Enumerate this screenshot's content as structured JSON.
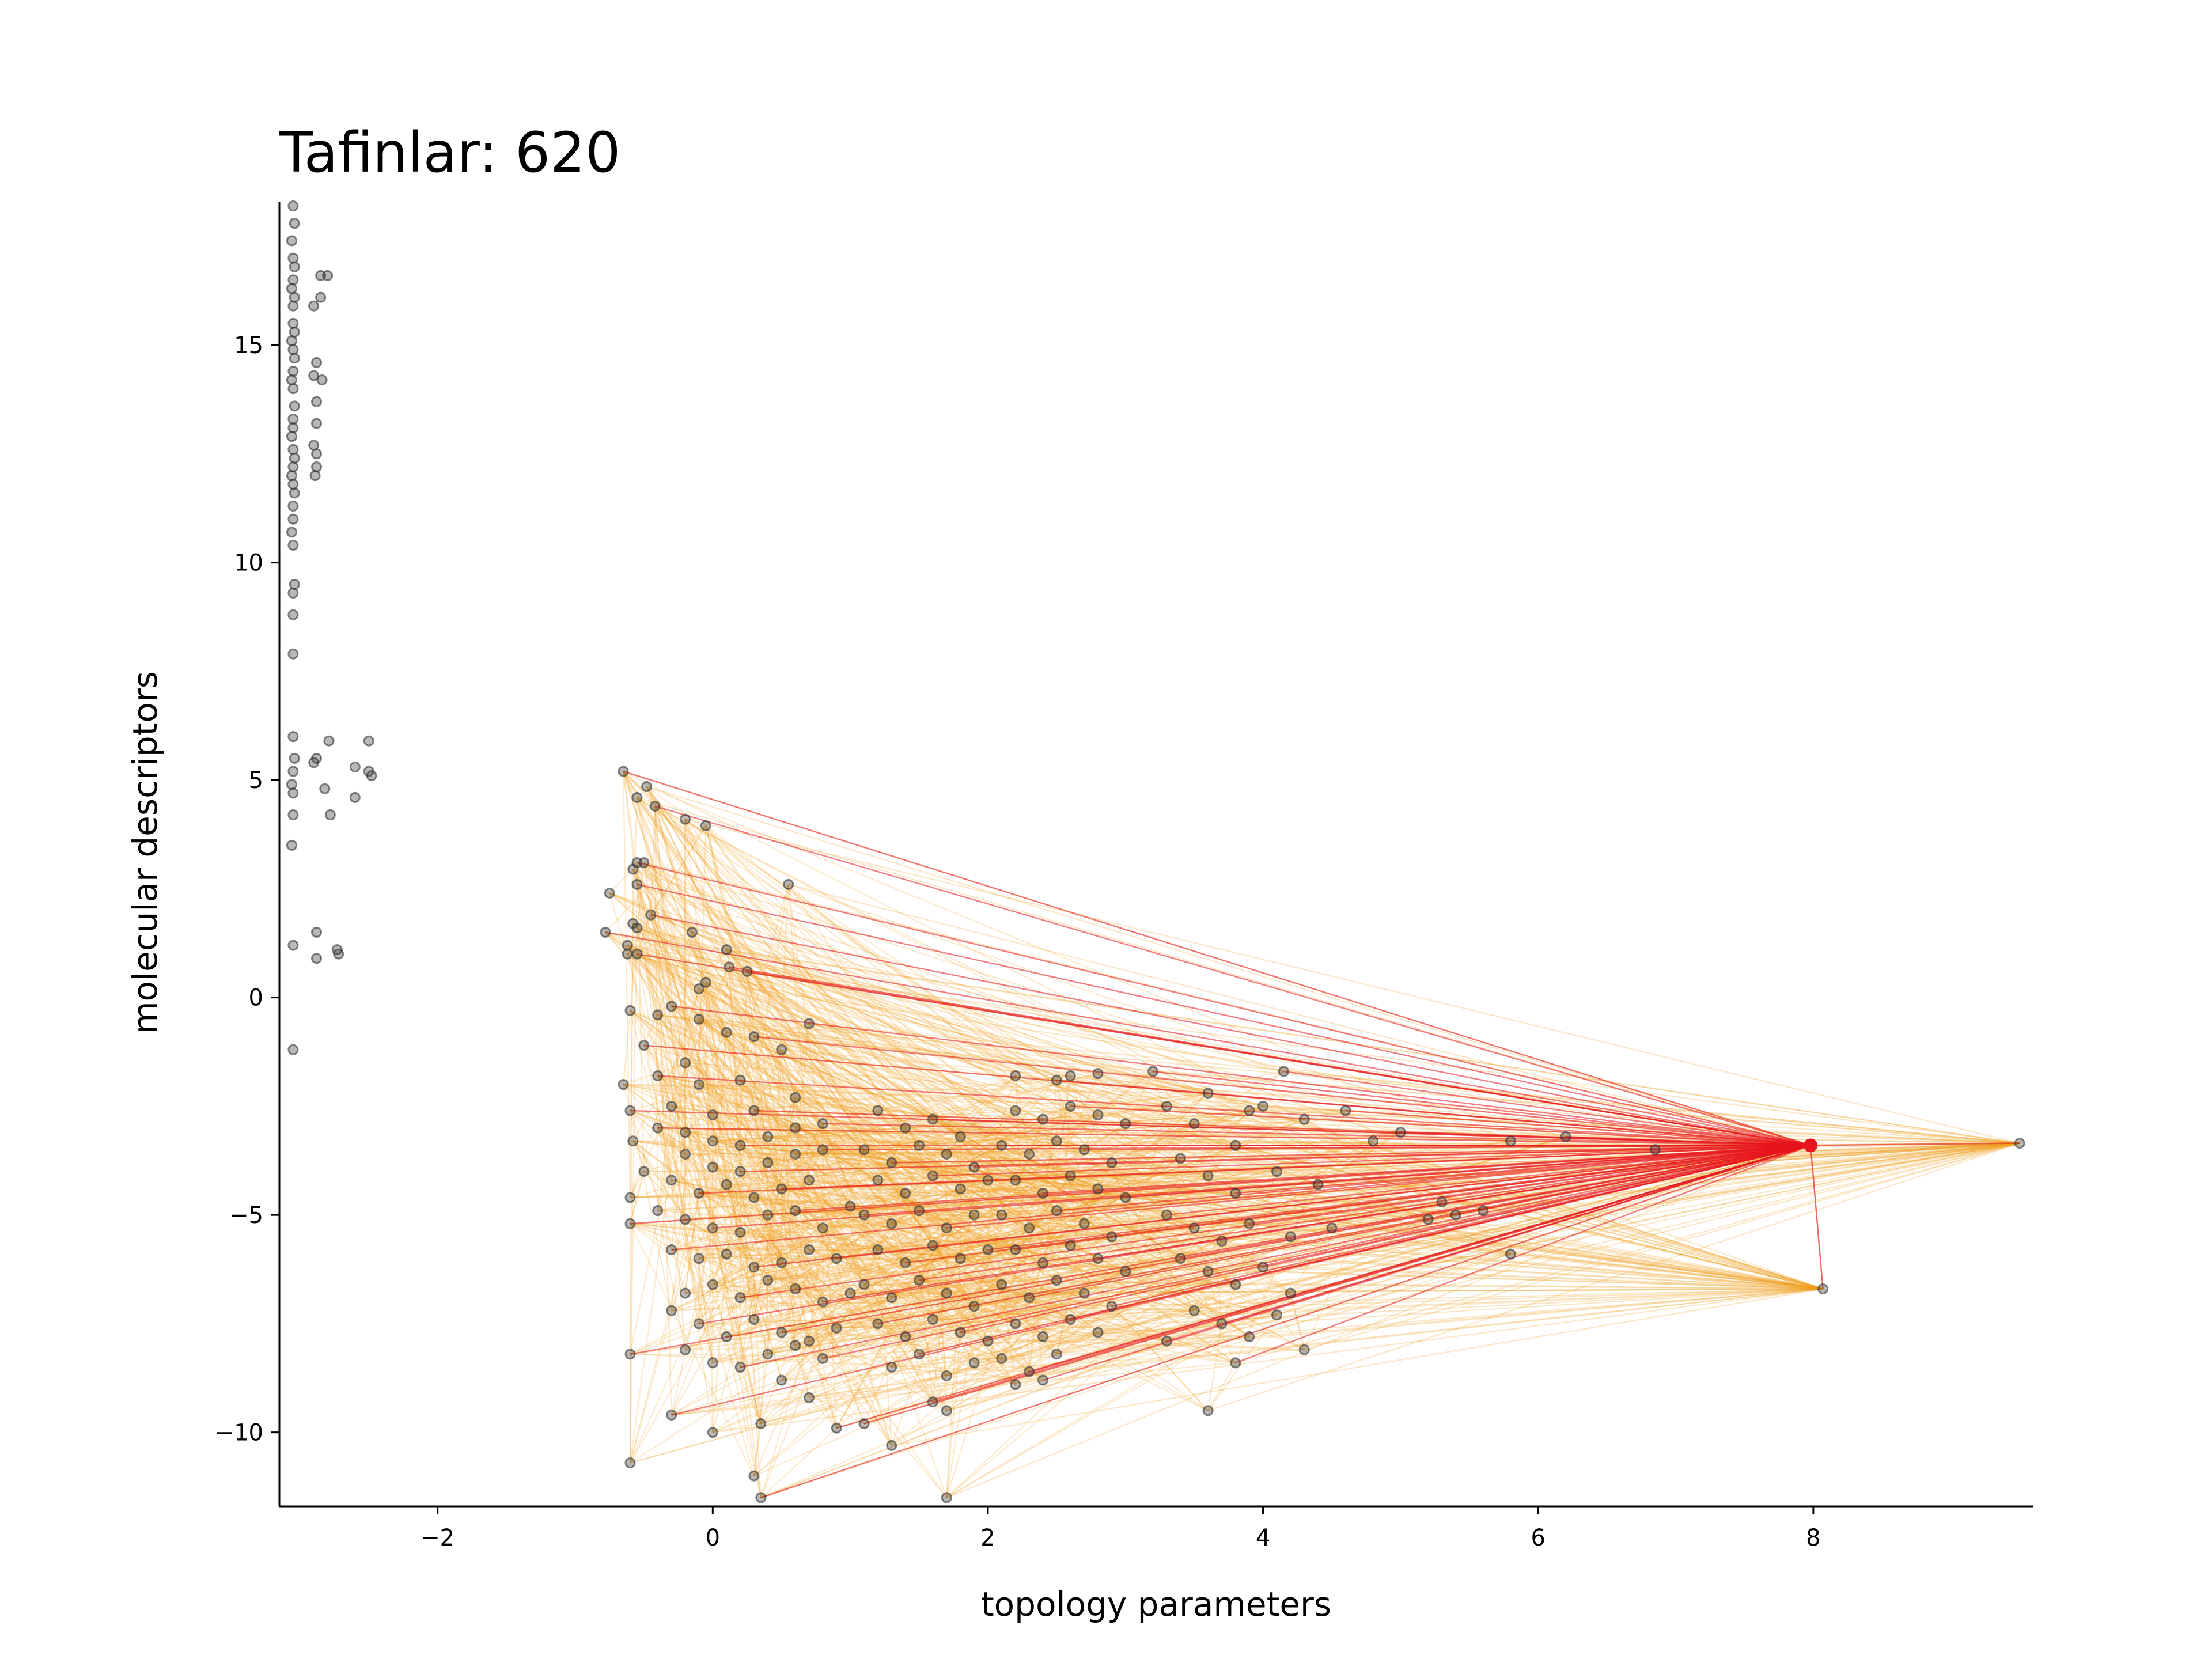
{
  "chart_data": {
    "type": "scatter",
    "title": "Tafinlar: 620",
    "xlabel": "topology parameters",
    "ylabel": "molecular descriptors",
    "xlim": [
      -3.15,
      9.6
    ],
    "ylim": [
      -11.7,
      18.3
    ],
    "xticks": [
      -2,
      0,
      2,
      4,
      6,
      8
    ],
    "yticks": [
      -10,
      -5,
      0,
      5,
      10,
      15
    ],
    "xtick_labels": [
      "−2",
      "0",
      "2",
      "4",
      "6",
      "8"
    ],
    "ytick_labels": [
      "−10",
      "−5",
      "0",
      "5",
      "10",
      "15"
    ],
    "grid": false,
    "legend": "none",
    "colors": {
      "points": "#333333",
      "edges": "#f0a020",
      "highlight_edges": "#e8141e",
      "highlight_point": "#e8141e"
    },
    "highlight_point": {
      "x": 7.98,
      "y": -3.4
    },
    "left_cluster": [
      [
        -3.05,
        18.2
      ],
      [
        -3.04,
        17.8
      ],
      [
        -3.06,
        17.4
      ],
      [
        -3.05,
        17.0
      ],
      [
        -3.04,
        16.8
      ],
      [
        -3.05,
        16.5
      ],
      [
        -3.06,
        16.3
      ],
      [
        -3.04,
        16.1
      ],
      [
        -3.05,
        15.9
      ],
      [
        -3.05,
        15.5
      ],
      [
        -3.04,
        15.3
      ],
      [
        -3.06,
        15.1
      ],
      [
        -3.05,
        14.9
      ],
      [
        -3.04,
        14.7
      ],
      [
        -3.05,
        14.4
      ],
      [
        -3.06,
        14.2
      ],
      [
        -3.05,
        14.0
      ],
      [
        -3.04,
        13.6
      ],
      [
        -3.05,
        13.3
      ],
      [
        -3.05,
        13.1
      ],
      [
        -3.06,
        12.9
      ],
      [
        -3.05,
        12.6
      ],
      [
        -3.04,
        12.4
      ],
      [
        -3.05,
        12.2
      ],
      [
        -3.06,
        12.0
      ],
      [
        -3.05,
        11.8
      ],
      [
        -3.04,
        11.6
      ],
      [
        -3.05,
        11.3
      ],
      [
        -3.05,
        11.0
      ],
      [
        -3.06,
        10.7
      ],
      [
        -3.05,
        10.4
      ],
      [
        -3.04,
        9.5
      ],
      [
        -3.05,
        9.3
      ],
      [
        -3.05,
        8.8
      ],
      [
        -3.05,
        7.9
      ],
      [
        -3.05,
        6.0
      ],
      [
        -3.04,
        5.5
      ],
      [
        -3.05,
        5.2
      ],
      [
        -3.06,
        4.9
      ],
      [
        -3.05,
        4.7
      ],
      [
        -3.05,
        4.2
      ],
      [
        -3.06,
        3.5
      ],
      [
        -3.05,
        1.2
      ],
      [
        -3.05,
        -1.2
      ],
      [
        -2.85,
        16.6
      ],
      [
        -2.8,
        16.6
      ],
      [
        -2.85,
        16.1
      ],
      [
        -2.9,
        15.9
      ],
      [
        -2.88,
        14.6
      ],
      [
        -2.9,
        14.3
      ],
      [
        -2.84,
        14.2
      ],
      [
        -2.88,
        13.7
      ],
      [
        -2.88,
        13.2
      ],
      [
        -2.9,
        12.7
      ],
      [
        -2.88,
        12.5
      ],
      [
        -2.88,
        12.2
      ],
      [
        -2.89,
        12.0
      ],
      [
        -2.9,
        5.4
      ],
      [
        -2.88,
        5.5
      ],
      [
        -2.79,
        5.9
      ],
      [
        -2.82,
        4.8
      ],
      [
        -2.78,
        4.2
      ],
      [
        -2.88,
        1.5
      ],
      [
        -2.88,
        0.9
      ],
      [
        -2.73,
        1.1
      ],
      [
        -2.72,
        1.0
      ],
      [
        -2.6,
        4.6
      ],
      [
        -2.6,
        5.3
      ],
      [
        -2.5,
        5.9
      ],
      [
        -2.5,
        5.2
      ],
      [
        -2.48,
        5.1
      ]
    ],
    "main_points": [
      [
        -0.65,
        5.2
      ],
      [
        -0.55,
        4.6
      ],
      [
        -0.48,
        4.85
      ],
      [
        -0.42,
        4.4
      ],
      [
        -0.2,
        4.1
      ],
      [
        -0.05,
        3.95
      ],
      [
        -0.55,
        3.1
      ],
      [
        -0.5,
        3.1
      ],
      [
        -0.58,
        2.95
      ],
      [
        -0.55,
        2.6
      ],
      [
        0.55,
        2.6
      ],
      [
        -0.75,
        2.4
      ],
      [
        -0.45,
        1.9
      ],
      [
        -0.58,
        1.7
      ],
      [
        -0.55,
        1.6
      ],
      [
        -0.78,
        1.5
      ],
      [
        -0.62,
        1.2
      ],
      [
        -0.62,
        1.0
      ],
      [
        -0.55,
        1.0
      ],
      [
        -0.15,
        1.5
      ],
      [
        0.1,
        1.1
      ],
      [
        0.12,
        0.7
      ],
      [
        -0.1,
        0.2
      ],
      [
        -0.05,
        0.35
      ],
      [
        0.25,
        0.6
      ],
      [
        -0.6,
        -0.3
      ],
      [
        -0.4,
        -0.4
      ],
      [
        -0.3,
        -0.2
      ],
      [
        -0.1,
        -0.5
      ],
      [
        0.1,
        -0.8
      ],
      [
        0.3,
        -0.9
      ],
      [
        0.7,
        -0.6
      ],
      [
        0.5,
        -1.2
      ],
      [
        -0.5,
        -1.1
      ],
      [
        -0.2,
        -1.5
      ],
      [
        -0.65,
        -2.0
      ],
      [
        -0.4,
        -1.8
      ],
      [
        -0.1,
        -2.0
      ],
      [
        0.2,
        -1.9
      ],
      [
        -0.6,
        -2.6
      ],
      [
        -0.3,
        -2.5
      ],
      [
        0.0,
        -2.7
      ],
      [
        0.3,
        -2.6
      ],
      [
        0.6,
        -2.3
      ],
      [
        -0.58,
        -3.3
      ],
      [
        -0.4,
        -3.0
      ],
      [
        -0.2,
        -3.1
      ],
      [
        0.0,
        -3.3
      ],
      [
        0.2,
        -3.4
      ],
      [
        0.4,
        -3.2
      ],
      [
        0.6,
        -3.0
      ],
      [
        0.8,
        -2.9
      ],
      [
        -0.2,
        -3.6
      ],
      [
        0.0,
        -3.9
      ],
      [
        0.2,
        -4.0
      ],
      [
        0.4,
        -3.8
      ],
      [
        0.6,
        -3.6
      ],
      [
        0.8,
        -3.5
      ],
      [
        -0.5,
        -4.0
      ],
      [
        -0.3,
        -4.2
      ],
      [
        -0.1,
        -4.5
      ],
      [
        0.1,
        -4.3
      ],
      [
        0.3,
        -4.6
      ],
      [
        0.5,
        -4.4
      ],
      [
        0.7,
        -4.2
      ],
      [
        -0.6,
        -4.6
      ],
      [
        -0.6,
        -5.2
      ],
      [
        -0.4,
        -4.9
      ],
      [
        -0.2,
        -5.1
      ],
      [
        0.0,
        -5.3
      ],
      [
        0.2,
        -5.4
      ],
      [
        0.4,
        -5.0
      ],
      [
        0.6,
        -4.9
      ],
      [
        0.8,
        -5.3
      ],
      [
        1.0,
        -4.8
      ],
      [
        -0.3,
        -5.8
      ],
      [
        -0.1,
        -6.0
      ],
      [
        0.1,
        -5.9
      ],
      [
        0.3,
        -6.2
      ],
      [
        0.5,
        -6.1
      ],
      [
        0.7,
        -5.8
      ],
      [
        0.9,
        -6.0
      ],
      [
        -0.2,
        -6.8
      ],
      [
        0.0,
        -6.6
      ],
      [
        0.2,
        -6.9
      ],
      [
        0.4,
        -6.5
      ],
      [
        0.6,
        -6.7
      ],
      [
        0.8,
        -7.0
      ],
      [
        1.0,
        -6.8
      ],
      [
        -0.3,
        -7.2
      ],
      [
        -0.1,
        -7.5
      ],
      [
        0.1,
        -7.8
      ],
      [
        0.3,
        -7.4
      ],
      [
        0.5,
        -7.7
      ],
      [
        0.7,
        -7.9
      ],
      [
        0.9,
        -7.6
      ],
      [
        -0.6,
        -8.2
      ],
      [
        -0.2,
        -8.1
      ],
      [
        0.0,
        -8.4
      ],
      [
        0.2,
        -8.5
      ],
      [
        0.4,
        -8.2
      ],
      [
        0.6,
        -8.0
      ],
      [
        0.8,
        -8.3
      ],
      [
        0.7,
        -9.2
      ],
      [
        0.5,
        -8.8
      ],
      [
        -0.3,
        -9.6
      ],
      [
        0.0,
        -10.0
      ],
      [
        0.35,
        -9.8
      ],
      [
        0.9,
        -9.9
      ],
      [
        -0.6,
        -10.7
      ],
      [
        0.3,
        -11.0
      ],
      [
        0.35,
        -11.5
      ],
      [
        1.7,
        -11.5
      ],
      [
        1.3,
        -10.3
      ],
      [
        1.1,
        -9.8
      ],
      [
        1.2,
        -2.6
      ],
      [
        1.4,
        -3.0
      ],
      [
        1.6,
        -2.8
      ],
      [
        1.8,
        -3.2
      ],
      [
        1.1,
        -3.5
      ],
      [
        1.3,
        -3.8
      ],
      [
        1.5,
        -3.4
      ],
      [
        1.7,
        -3.6
      ],
      [
        1.9,
        -3.9
      ],
      [
        1.2,
        -4.2
      ],
      [
        1.4,
        -4.5
      ],
      [
        1.6,
        -4.1
      ],
      [
        1.8,
        -4.4
      ],
      [
        2.0,
        -4.2
      ],
      [
        1.1,
        -5.0
      ],
      [
        1.3,
        -5.2
      ],
      [
        1.5,
        -4.9
      ],
      [
        1.7,
        -5.3
      ],
      [
        1.9,
        -5.0
      ],
      [
        1.2,
        -5.8
      ],
      [
        1.4,
        -6.1
      ],
      [
        1.6,
        -5.7
      ],
      [
        1.8,
        -6.0
      ],
      [
        2.0,
        -5.8
      ],
      [
        1.1,
        -6.6
      ],
      [
        1.3,
        -6.9
      ],
      [
        1.5,
        -6.5
      ],
      [
        1.7,
        -6.8
      ],
      [
        1.9,
        -7.1
      ],
      [
        1.2,
        -7.5
      ],
      [
        1.4,
        -7.8
      ],
      [
        1.6,
        -7.4
      ],
      [
        1.8,
        -7.7
      ],
      [
        2.0,
        -7.9
      ],
      [
        1.3,
        -8.5
      ],
      [
        1.5,
        -8.2
      ],
      [
        1.7,
        -8.7
      ],
      [
        1.9,
        -8.4
      ],
      [
        1.6,
        -9.3
      ],
      [
        1.7,
        -9.5
      ],
      [
        2.2,
        -1.8
      ],
      [
        2.5,
        -1.9
      ],
      [
        2.6,
        -1.8
      ],
      [
        2.8,
        -1.75
      ],
      [
        3.2,
        -1.7
      ],
      [
        2.2,
        -2.6
      ],
      [
        2.4,
        -2.8
      ],
      [
        2.6,
        -2.5
      ],
      [
        2.8,
        -2.7
      ],
      [
        3.0,
        -2.9
      ],
      [
        2.1,
        -3.4
      ],
      [
        2.3,
        -3.6
      ],
      [
        2.5,
        -3.3
      ],
      [
        2.7,
        -3.5
      ],
      [
        2.9,
        -3.8
      ],
      [
        2.2,
        -4.2
      ],
      [
        2.4,
        -4.5
      ],
      [
        2.6,
        -4.1
      ],
      [
        2.8,
        -4.4
      ],
      [
        3.0,
        -4.6
      ],
      [
        2.1,
        -5.0
      ],
      [
        2.3,
        -5.3
      ],
      [
        2.5,
        -4.9
      ],
      [
        2.7,
        -5.2
      ],
      [
        2.9,
        -5.5
      ],
      [
        2.2,
        -5.8
      ],
      [
        2.4,
        -6.1
      ],
      [
        2.6,
        -5.7
      ],
      [
        2.8,
        -6.0
      ],
      [
        3.0,
        -6.3
      ],
      [
        2.1,
        -6.6
      ],
      [
        2.3,
        -6.9
      ],
      [
        2.5,
        -6.5
      ],
      [
        2.7,
        -6.8
      ],
      [
        2.9,
        -7.1
      ],
      [
        2.2,
        -7.5
      ],
      [
        2.4,
        -7.8
      ],
      [
        2.6,
        -7.4
      ],
      [
        2.8,
        -7.7
      ],
      [
        2.1,
        -8.3
      ],
      [
        2.3,
        -8.6
      ],
      [
        2.5,
        -8.2
      ],
      [
        2.2,
        -8.9
      ],
      [
        2.4,
        -8.8
      ],
      [
        3.3,
        -2.5
      ],
      [
        3.5,
        -2.9
      ],
      [
        3.8,
        -3.4
      ],
      [
        3.6,
        -2.2
      ],
      [
        3.9,
        -2.6
      ],
      [
        4.15,
        -1.7
      ],
      [
        4.0,
        -2.5
      ],
      [
        4.3,
        -2.8
      ],
      [
        4.6,
        -2.6
      ],
      [
        3.4,
        -3.7
      ],
      [
        3.6,
        -4.1
      ],
      [
        3.8,
        -4.5
      ],
      [
        4.1,
        -4.0
      ],
      [
        4.4,
        -4.3
      ],
      [
        3.3,
        -5.0
      ],
      [
        3.5,
        -5.3
      ],
      [
        3.7,
        -5.6
      ],
      [
        3.9,
        -5.2
      ],
      [
        4.2,
        -5.5
      ],
      [
        4.5,
        -5.3
      ],
      [
        3.4,
        -6.0
      ],
      [
        3.6,
        -6.3
      ],
      [
        3.8,
        -6.6
      ],
      [
        4.0,
        -6.2
      ],
      [
        4.2,
        -6.8
      ],
      [
        3.5,
        -7.2
      ],
      [
        3.7,
        -7.5
      ],
      [
        3.9,
        -7.8
      ],
      [
        4.1,
        -7.3
      ],
      [
        3.8,
        -8.4
      ],
      [
        3.6,
        -9.5
      ],
      [
        4.3,
        -8.1
      ],
      [
        3.3,
        -7.9
      ],
      [
        5.3,
        -4.7
      ],
      [
        5.6,
        -4.9
      ],
      [
        5.4,
        -5.0
      ],
      [
        5.2,
        -5.1
      ],
      [
        5.8,
        -5.9
      ],
      [
        6.2,
        -3.2
      ],
      [
        6.85,
        -3.5
      ],
      [
        4.8,
        -3.3
      ],
      [
        5.0,
        -3.1
      ],
      [
        5.8,
        -3.3
      ],
      [
        8.07,
        -6.7
      ],
      [
        9.5,
        -3.35
      ]
    ],
    "hub_edges_targets": [
      [
        7.98,
        -3.4
      ],
      [
        8.07,
        -6.7
      ],
      [
        9.5,
        -3.35
      ]
    ]
  }
}
